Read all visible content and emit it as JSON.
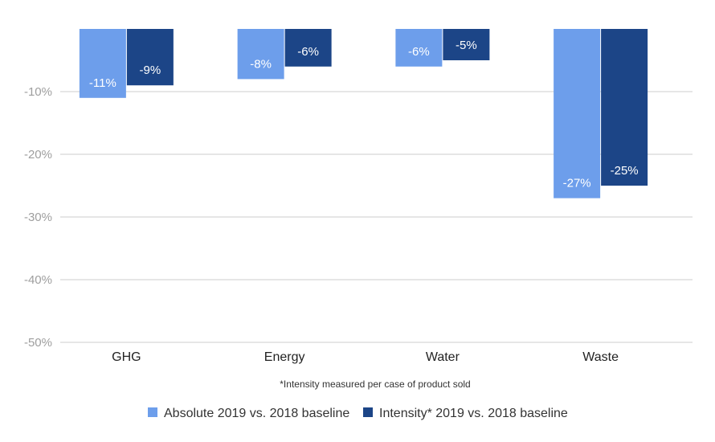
{
  "chart_data": {
    "type": "bar",
    "categories": [
      "GHG",
      "Energy",
      "Water",
      "Waste"
    ],
    "series": [
      {
        "name": "Absolute 2019 vs. 2018 baseline",
        "values": [
          -11,
          -8,
          -6,
          -27
        ],
        "labels": [
          "-11%",
          "-8%",
          "-6%",
          "-27%"
        ],
        "color": "#6d9eeb"
      },
      {
        "name": "Intensity* 2019 vs. 2018 baseline",
        "values": [
          -9,
          -6,
          -5,
          -25
        ],
        "labels": [
          "-9%",
          "-6%",
          "-5%",
          "-25%"
        ],
        "color": "#1c4587"
      }
    ],
    "yticks": [
      -10,
      -20,
      -30,
      -40,
      -50
    ],
    "ytick_labels": [
      "-10%",
      "-20%",
      "-30%",
      "-40%",
      "-50%"
    ],
    "ylim": [
      -50,
      0
    ],
    "grid": true,
    "legend_position": "bottom",
    "footnote": "*Intensity measured per case of product sold"
  }
}
